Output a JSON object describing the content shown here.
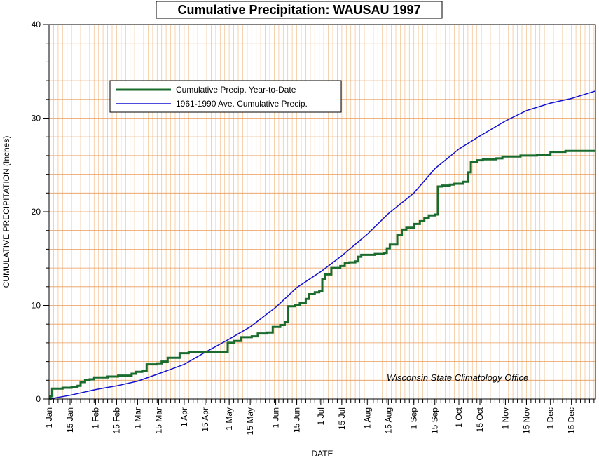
{
  "chart_data": {
    "type": "line",
    "title": "Cumulative Precipitation: WAUSAU 1997",
    "xlabel": "DATE",
    "ylabel": "CUMULATIVE PRECIPITATION (Inches)",
    "ylim": [
      0,
      40
    ],
    "yticks": [
      0,
      10,
      20,
      30,
      40
    ],
    "xlim": [
      "1 Jan",
      "31 Dec"
    ],
    "xticks": [
      "1 Jan",
      "15 Jan",
      "1 Feb",
      "15 Feb",
      "1 Mar",
      "15 Mar",
      "1 Apr",
      "15 Apr",
      "1 May",
      "15 May",
      "1 Jun",
      "15 Jun",
      "1 Jul",
      "15 Jul",
      "1 Aug",
      "15 Aug",
      "1 Sep",
      "15 Sep",
      "1 Oct",
      "15 Oct",
      "1 Nov",
      "15 Nov",
      "1 Dec",
      "15 Dec"
    ],
    "xtick_days": [
      1,
      15,
      32,
      46,
      60,
      74,
      91,
      105,
      121,
      135,
      152,
      166,
      182,
      196,
      213,
      227,
      244,
      258,
      274,
      288,
      305,
      319,
      335,
      349
    ],
    "grid": true,
    "legend_position": "top-left",
    "annotation": "Wisconsin State Climatology Office",
    "series": [
      {
        "name": "Cumulative Precip. Year-to-Date",
        "color": "#1a6b2e",
        "step": true,
        "points": [
          [
            1,
            0
          ],
          [
            2,
            0.3
          ],
          [
            3,
            1.1
          ],
          [
            10,
            1.2
          ],
          [
            16,
            1.3
          ],
          [
            20,
            1.4
          ],
          [
            22,
            1.8
          ],
          [
            25,
            2.0
          ],
          [
            28,
            2.1
          ],
          [
            31,
            2.3
          ],
          [
            40,
            2.4
          ],
          [
            47,
            2.5
          ],
          [
            52,
            2.5
          ],
          [
            56,
            2.7
          ],
          [
            59,
            2.9
          ],
          [
            63,
            3.0
          ],
          [
            66,
            3.7
          ],
          [
            73,
            3.8
          ],
          [
            76,
            4.0
          ],
          [
            80,
            4.4
          ],
          [
            88,
            4.9
          ],
          [
            94,
            5.0
          ],
          [
            120,
            6.0
          ],
          [
            124,
            6.2
          ],
          [
            129,
            6.6
          ],
          [
            136,
            6.7
          ],
          [
            140,
            7.0
          ],
          [
            146,
            7.1
          ],
          [
            150,
            7.7
          ],
          [
            155,
            7.9
          ],
          [
            158,
            8.2
          ],
          [
            160,
            9.9
          ],
          [
            165,
            10.0
          ],
          [
            168,
            10.3
          ],
          [
            172,
            10.7
          ],
          [
            174,
            11.2
          ],
          [
            178,
            11.4
          ],
          [
            181,
            11.5
          ],
          [
            183,
            12.8
          ],
          [
            185,
            13.3
          ],
          [
            189,
            14.0
          ],
          [
            195,
            14.2
          ],
          [
            198,
            14.5
          ],
          [
            201,
            14.6
          ],
          [
            205,
            14.7
          ],
          [
            207,
            15.2
          ],
          [
            209,
            15.4
          ],
          [
            218,
            15.5
          ],
          [
            224,
            15.6
          ],
          [
            226,
            16.1
          ],
          [
            228,
            16.5
          ],
          [
            233,
            17.5
          ],
          [
            236,
            18.1
          ],
          [
            239,
            18.3
          ],
          [
            244,
            18.7
          ],
          [
            248,
            19.0
          ],
          [
            251,
            19.3
          ],
          [
            254,
            19.6
          ],
          [
            258,
            19.7
          ],
          [
            260,
            22.7
          ],
          [
            263,
            22.8
          ],
          [
            268,
            22.9
          ],
          [
            271,
            23.0
          ],
          [
            277,
            23.2
          ],
          [
            280,
            24.2
          ],
          [
            282,
            25.3
          ],
          [
            286,
            25.5
          ],
          [
            290,
            25.6
          ],
          [
            299,
            25.7
          ],
          [
            303,
            25.9
          ],
          [
            315,
            26.0
          ],
          [
            326,
            26.1
          ],
          [
            335,
            26.4
          ],
          [
            345,
            26.5
          ],
          [
            365,
            26.5
          ]
        ]
      },
      {
        "name": "1961-1990 Ave. Cumulative Precip.",
        "color": "#1010d0",
        "step": false,
        "points": [
          [
            1,
            0
          ],
          [
            15,
            0.4
          ],
          [
            32,
            1.0
          ],
          [
            46,
            1.4
          ],
          [
            60,
            1.9
          ],
          [
            74,
            2.7
          ],
          [
            91,
            3.7
          ],
          [
            105,
            5.0
          ],
          [
            121,
            6.4
          ],
          [
            135,
            7.7
          ],
          [
            152,
            9.8
          ],
          [
            166,
            11.9
          ],
          [
            182,
            13.6
          ],
          [
            196,
            15.3
          ],
          [
            213,
            17.6
          ],
          [
            227,
            19.8
          ],
          [
            244,
            22.0
          ],
          [
            258,
            24.6
          ],
          [
            274,
            26.7
          ],
          [
            288,
            28.1
          ],
          [
            305,
            29.7
          ],
          [
            319,
            30.8
          ],
          [
            335,
            31.6
          ],
          [
            349,
            32.1
          ],
          [
            365,
            32.9
          ]
        ]
      }
    ]
  }
}
